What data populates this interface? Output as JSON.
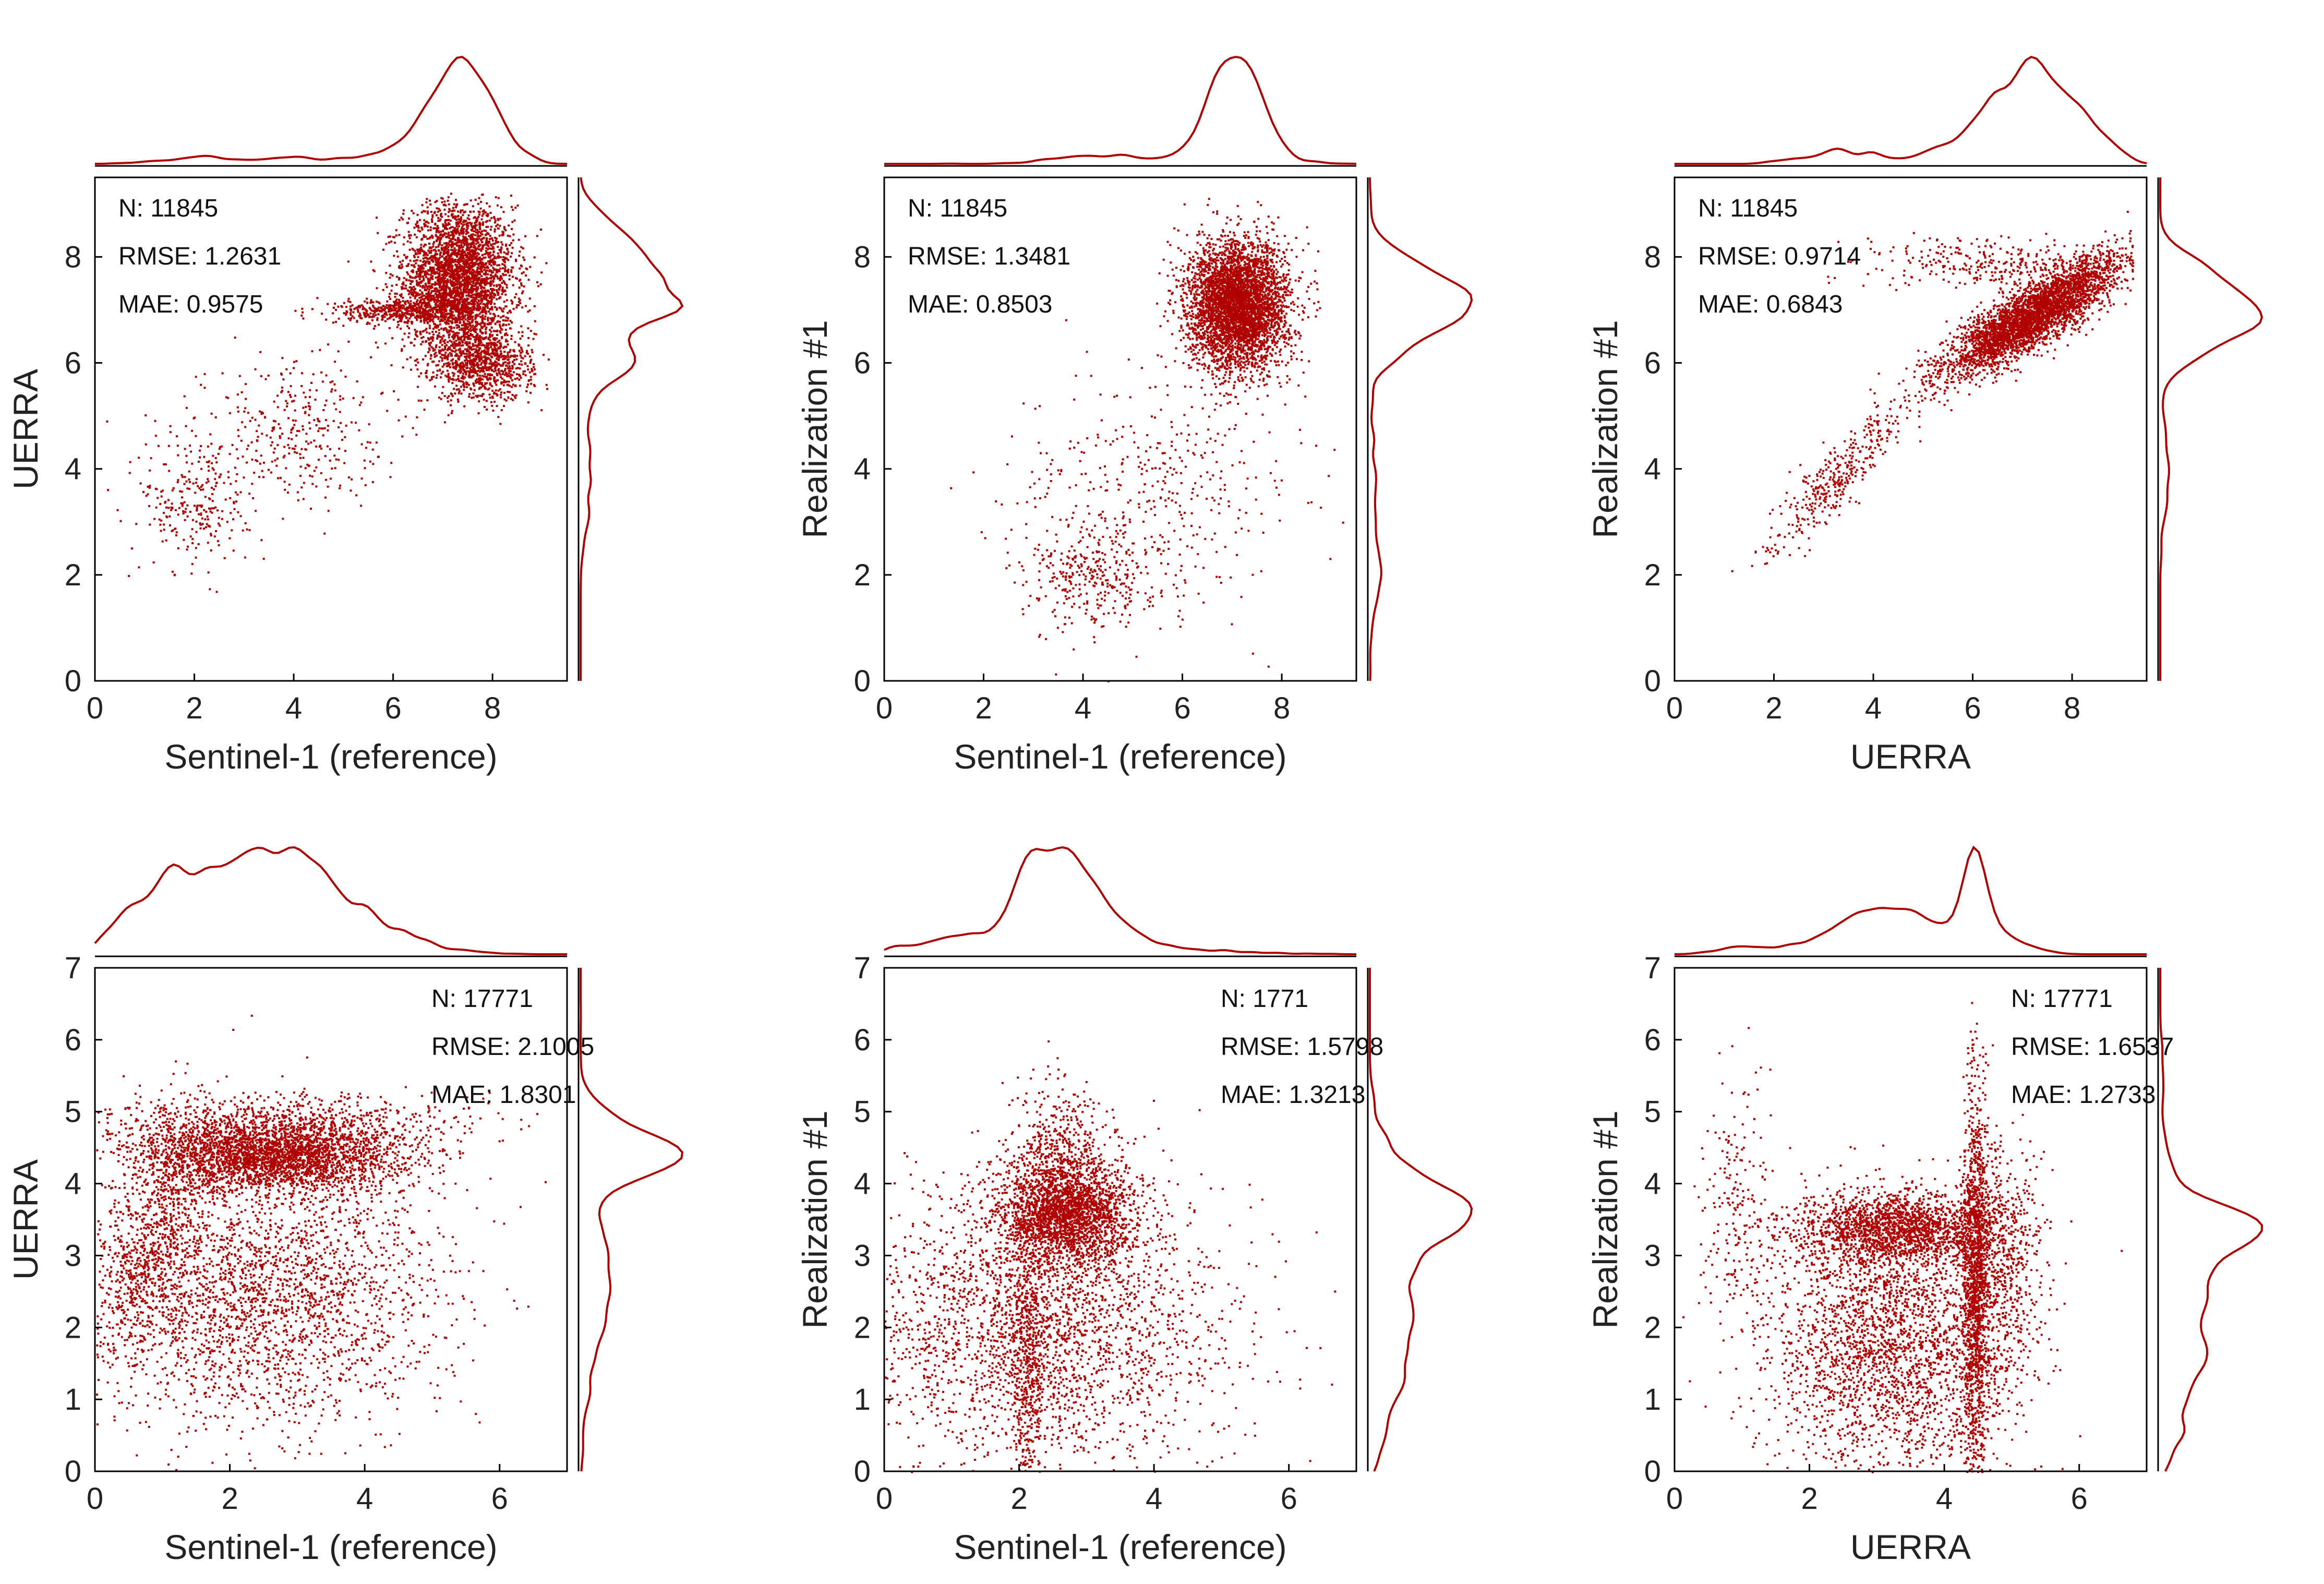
{
  "figure": {
    "accent_color": "#B00000",
    "axis_color": "#000000",
    "background": "#FFFFFF",
    "panels": [
      {
        "id": "a",
        "stats": [
          "N: 11845",
          "RMSE: 1.2631",
          "MAE: 0.9575"
        ],
        "stats_position": "top-left"
      },
      {
        "id": "b",
        "stats": [
          "N: 11845",
          "RMSE: 1.3481",
          "MAE: 0.8503"
        ],
        "stats_position": "top-left"
      },
      {
        "id": "c",
        "stats": [
          "N: 11845",
          "RMSE: 0.9714",
          "MAE: 0.6843"
        ],
        "stats_position": "top-left"
      },
      {
        "id": "d",
        "stats": [
          "N: 17771",
          "RMSE: 2.1005",
          "MAE: 1.8301"
        ],
        "stats_position": "top-right"
      },
      {
        "id": "e",
        "stats": [
          "N: 1771",
          "RMSE: 1.5798",
          "MAE: 1.3213"
        ],
        "stats_position": "top-right"
      },
      {
        "id": "f",
        "stats": [
          "N: 17771",
          "RMSE: 1.6537",
          "MAE: 1.2733"
        ],
        "stats_position": "top-right"
      }
    ]
  },
  "chart_data": [
    {
      "type": "scatter",
      "xlabel": "Sentinel-1 (reference)",
      "ylabel": "UERRA",
      "xlim": [
        0,
        9.5
      ],
      "ylim": [
        0,
        9.5
      ],
      "xticks": [
        "0",
        "2",
        "4",
        "6",
        "8"
      ],
      "yticks": [
        "0",
        "2",
        "4",
        "6",
        "8"
      ],
      "n": 11845,
      "marginals": "kernel density of x (top) and y (right)",
      "clusters": [
        {
          "x": 7.3,
          "y": 7.6,
          "sx": 0.55,
          "sy": 0.7,
          "n": 3400
        },
        {
          "x": 7.8,
          "y": 6.0,
          "sx": 0.5,
          "sy": 0.35,
          "n": 900
        },
        {
          "x": 6.2,
          "y": 7.0,
          "sx": 0.7,
          "sy": 0.12,
          "n": 500
        },
        {
          "x": 2.0,
          "y": 3.4,
          "sx": 0.55,
          "sy": 0.7,
          "n": 260
        },
        {
          "x": 4.0,
          "y": 4.8,
          "sx": 0.9,
          "sy": 0.7,
          "n": 340
        }
      ]
    },
    {
      "type": "scatter",
      "xlabel": "Sentinel-1 (reference)",
      "ylabel": "Realization #1",
      "xlim": [
        0,
        9.5
      ],
      "ylim": [
        0,
        9.5
      ],
      "xticks": [
        "0",
        "2",
        "4",
        "6",
        "8"
      ],
      "yticks": [
        "0",
        "2",
        "4",
        "6",
        "8"
      ],
      "n": 11845,
      "marginals": "kernel density of x (top) and y (right)",
      "clusters": [
        {
          "x": 7.1,
          "y": 7.1,
          "sx": 0.5,
          "sy": 0.6,
          "n": 4200
        },
        {
          "x": 4.2,
          "y": 2.0,
          "sx": 0.7,
          "sy": 0.5,
          "n": 320
        },
        {
          "x": 5.5,
          "y": 3.6,
          "sx": 1.4,
          "sy": 1.1,
          "n": 380
        }
      ]
    },
    {
      "type": "scatter",
      "xlabel": "UERRA",
      "ylabel": "Realization #1",
      "xlim": [
        0,
        9.5
      ],
      "ylim": [
        0,
        9.5
      ],
      "xticks": [
        "0",
        "2",
        "4",
        "6",
        "8"
      ],
      "yticks": [
        "0",
        "2",
        "4",
        "6",
        "8"
      ],
      "n": 11845,
      "marginals": "kernel density of x (top) and y (right)",
      "clusters": [
        {
          "x": 7.2,
          "y": 6.9,
          "sx": 0.9,
          "sy": 0.3,
          "n": 3600,
          "slope": 0.55
        },
        {
          "x": 3.2,
          "y": 3.8,
          "sx": 0.7,
          "sy": 0.3,
          "n": 360,
          "slope": 0.9
        },
        {
          "x": 6.3,
          "y": 7.9,
          "sx": 1.2,
          "sy": 0.25,
          "n": 300
        }
      ]
    },
    {
      "type": "scatter",
      "xlabel": "Sentinel-1 (reference)",
      "ylabel": "UERRA",
      "xlim": [
        0,
        7
      ],
      "ylim": [
        0,
        7
      ],
      "xticks": [
        "0",
        "2",
        "4",
        "6"
      ],
      "yticks": [
        "0",
        "1",
        "2",
        "3",
        "4",
        "5",
        "6",
        "7"
      ],
      "n": 17771,
      "marginals": "kernel density of x (top) and y (right)",
      "clusters": [
        {
          "x": 2.6,
          "y": 4.4,
          "sx": 1.0,
          "sy": 0.25,
          "n": 3000
        },
        {
          "x": 2.4,
          "y": 2.4,
          "sx": 1.3,
          "sy": 0.9,
          "n": 2500
        },
        {
          "x": 0.9,
          "y": 3.3,
          "sx": 0.5,
          "sy": 0.7,
          "n": 800,
          "slope": 1.2
        },
        {
          "x": 2.5,
          "y": 4.9,
          "sx": 1.5,
          "sy": 0.2,
          "n": 600
        }
      ]
    },
    {
      "type": "scatter",
      "xlabel": "Sentinel-1 (reference)",
      "ylabel": "Realization #1",
      "xlim": [
        0,
        7
      ],
      "ylim": [
        0,
        7
      ],
      "xticks": [
        "0",
        "2",
        "4",
        "6"
      ],
      "yticks": [
        "0",
        "1",
        "2",
        "3",
        "4",
        "5",
        "6",
        "7"
      ],
      "n": 1771,
      "marginals": "kernel density of x (top) and y (right)",
      "clusters": [
        {
          "x": 2.7,
          "y": 3.6,
          "sx": 0.5,
          "sy": 0.35,
          "n": 2200
        },
        {
          "x": 2.3,
          "y": 2.0,
          "sx": 1.4,
          "sy": 1.0,
          "n": 2600
        },
        {
          "x": 2.1,
          "y": 1.5,
          "sx": 0.12,
          "sy": 1.1,
          "n": 500
        },
        {
          "x": 2.6,
          "y": 4.4,
          "sx": 0.35,
          "sy": 0.5,
          "n": 500
        }
      ]
    },
    {
      "type": "scatter",
      "xlabel": "UERRA",
      "ylabel": "Realization #1",
      "xlim": [
        0,
        7
      ],
      "ylim": [
        0,
        7
      ],
      "xticks": [
        "0",
        "2",
        "4",
        "6"
      ],
      "yticks": [
        "0",
        "1",
        "2",
        "3",
        "4",
        "5",
        "6",
        "7"
      ],
      "n": 17771,
      "marginals": "kernel density of x (top) and y (right)",
      "clusters": [
        {
          "x": 3.3,
          "y": 3.4,
          "sx": 0.8,
          "sy": 0.25,
          "n": 1800
        },
        {
          "x": 4.45,
          "y": 2.7,
          "sx": 0.1,
          "sy": 1.3,
          "n": 1500
        },
        {
          "x": 3.2,
          "y": 1.8,
          "sx": 0.9,
          "sy": 0.9,
          "n": 2500
        },
        {
          "x": 4.9,
          "y": 2.8,
          "sx": 0.25,
          "sy": 0.8,
          "n": 500
        },
        {
          "x": 0.9,
          "y": 3.5,
          "sx": 0.25,
          "sy": 0.9,
          "n": 200
        }
      ]
    }
  ]
}
